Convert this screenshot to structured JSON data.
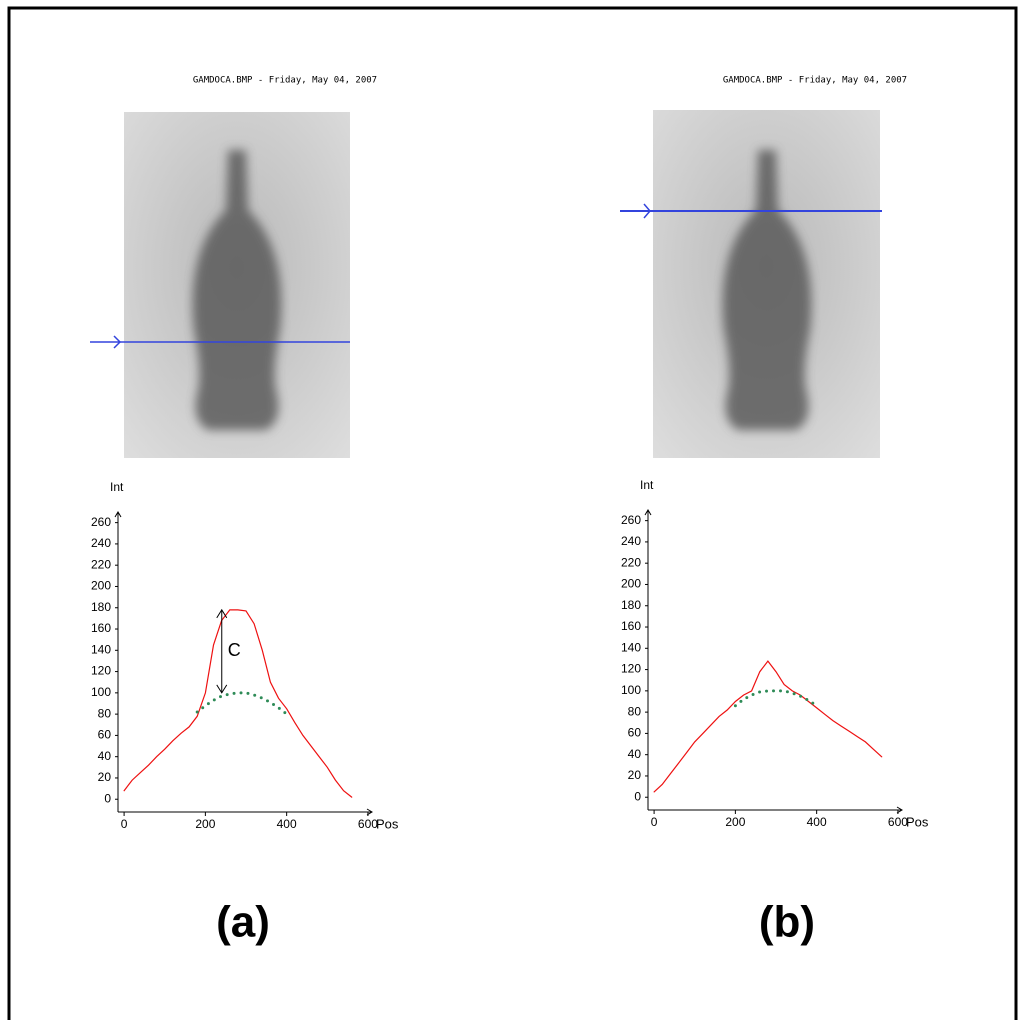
{
  "chart_data": [
    {
      "type": "line",
      "image_title": "GAMDOCA.BMP - Friday, May 04, 2007",
      "panel_label": "(a)",
      "annotation": "C",
      "xlabel": "Pos",
      "ylabel": "Int",
      "xlim": [
        -15,
        610
      ],
      "ylim": [
        -12,
        270
      ],
      "xticks": [
        0,
        200,
        400,
        600
      ],
      "yticks": [
        0,
        20,
        40,
        60,
        80,
        100,
        120,
        140,
        160,
        180,
        200,
        220,
        240,
        260
      ],
      "series": [
        {
          "color": "#ee1111",
          "line_style": "solid",
          "x": [
            0,
            20,
            40,
            60,
            80,
            100,
            120,
            140,
            160,
            180,
            200,
            220,
            240,
            260,
            280,
            300,
            320,
            340,
            360,
            380,
            400,
            420,
            440,
            460,
            480,
            500,
            520,
            540,
            560
          ],
          "values": [
            8,
            18,
            25,
            32,
            40,
            47,
            55,
            62,
            68,
            78,
            100,
            145,
            168,
            178,
            178,
            177,
            165,
            140,
            110,
            95,
            85,
            72,
            60,
            50,
            40,
            30,
            18,
            8,
            2
          ]
        },
        {
          "color": "#2e8b57",
          "line_style": "dotted",
          "x": [
            180,
            200,
            220,
            240,
            260,
            280,
            300,
            320,
            340,
            360,
            380,
            400
          ],
          "values": [
            82,
            88,
            93,
            97,
            99,
            100,
            100,
            98,
            95,
            91,
            86,
            80
          ]
        }
      ]
    },
    {
      "type": "line",
      "image_title": "GAMDOCA.BMP - Friday, May 04, 2007",
      "panel_label": "(b)",
      "xlabel": "Pos",
      "ylabel": "Int",
      "xlim": [
        -15,
        610
      ],
      "ylim": [
        -12,
        270
      ],
      "xticks": [
        0,
        200,
        400,
        600
      ],
      "yticks": [
        0,
        20,
        40,
        60,
        80,
        100,
        120,
        140,
        160,
        180,
        200,
        220,
        240,
        260
      ],
      "series": [
        {
          "color": "#ee1111",
          "line_style": "solid",
          "x": [
            0,
            20,
            40,
            60,
            80,
            100,
            120,
            140,
            160,
            180,
            200,
            220,
            240,
            260,
            280,
            300,
            320,
            340,
            360,
            380,
            400,
            420,
            440,
            460,
            480,
            500,
            520,
            540,
            560
          ],
          "values": [
            5,
            12,
            22,
            32,
            42,
            52,
            60,
            68,
            76,
            82,
            90,
            96,
            100,
            118,
            128,
            118,
            106,
            100,
            96,
            90,
            84,
            78,
            72,
            67,
            62,
            57,
            52,
            45,
            38
          ]
        },
        {
          "color": "#2e8b57",
          "line_style": "dotted",
          "x": [
            200,
            220,
            240,
            260,
            280,
            300,
            320,
            340,
            360,
            380,
            400
          ],
          "values": [
            86,
            92,
            96,
            99,
            100,
            100,
            100,
            98,
            95,
            91,
            86
          ]
        }
      ]
    }
  ]
}
